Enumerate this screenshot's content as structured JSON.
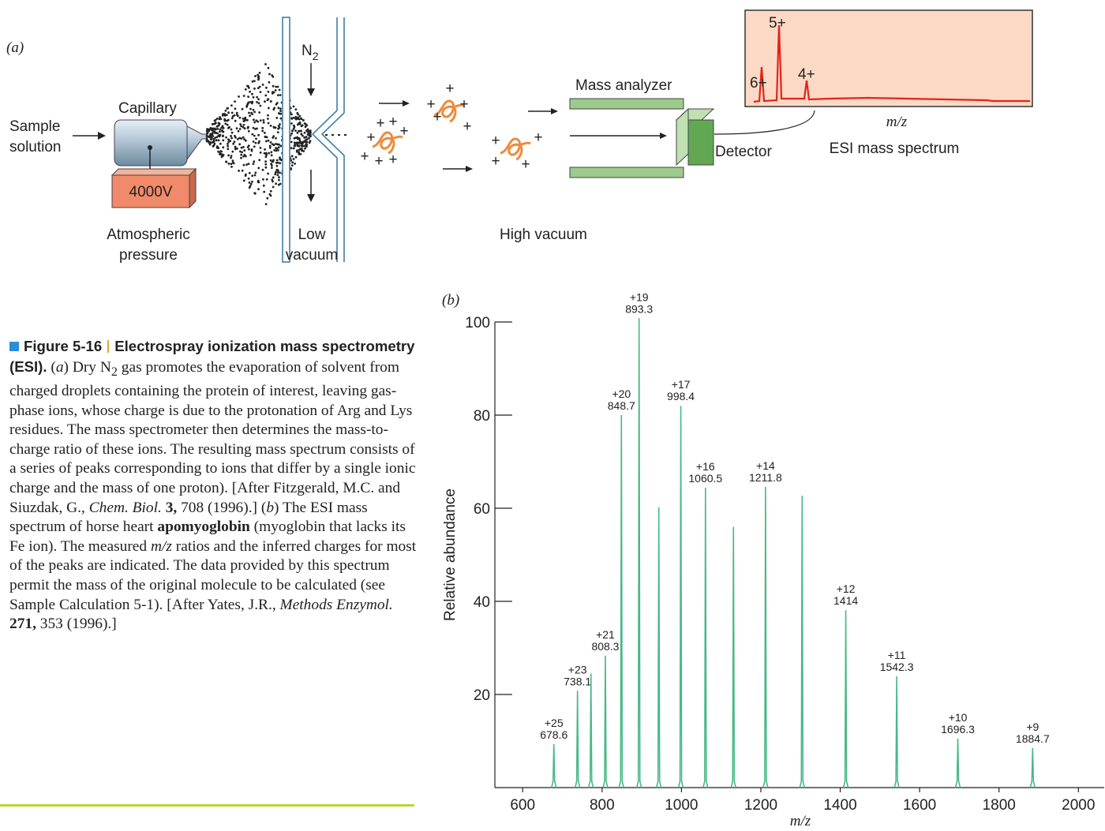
{
  "diagram": {
    "panel_label": "(a)",
    "sample_solution": [
      "Sample",
      "solution"
    ],
    "capillary": "Capillary",
    "voltage": "4000V",
    "atmospheric_pressure": [
      "Atmospheric",
      "pressure"
    ],
    "low_vacuum": [
      "Low",
      "vacuum"
    ],
    "gas": "N",
    "gas_subscript": "2",
    "high_vacuum": "High vacuum",
    "mass_analyzer": "Mass analyzer",
    "detector": "Detector",
    "spectrum_title": "ESI mass spectrum",
    "spectrum_peaks": [
      "6+",
      "5+",
      "4+"
    ],
    "spectrum_xlabel": "m/z",
    "charge_sign": "+"
  },
  "caption": {
    "runs": [
      "Figure 5-16",
      "Electrospray ionization mass spectrometry (ESI).",
      " (",
      "a",
      ") Dry N",
      "2",
      " gas promotes the evaporation of solvent from charged droplets containing the protein of interest, leaving gas-phase ions, whose charge is due to the protonation of Arg and Lys residues. The mass spectrometer then determines the mass-to-charge ratio of these ions. The resulting mass spectrum consists of a series of peaks corresponding to ions that differ by a single ionic charge and the mass of one proton). [After Fitzgerald, M.C. and Siuzdak, G., ",
      "Chem. Biol.",
      " ",
      "3,",
      " 708 (1996).] (",
      "b",
      ") The ESI mass spectrum of horse heart ",
      "apomyoglobin",
      " (myoglobin that lacks its Fe ion). The measured ",
      "m/z",
      " ratios and the inferred charges for most of the peaks are indicated. The data provided by this spectrum permit the mass of the original molecule to be calculated (see Sample Calculation 5-1). [After Yates, J.R., ",
      "Methods Enzymol.",
      " ",
      "271,",
      " 353 (1996).]"
    ]
  },
  "chart_data": {
    "type": "spectrum",
    "panel_label": "(b)",
    "xlabel": "m/z",
    "ylabel": "Relative abundance",
    "x": [
      678.6,
      738.1,
      772,
      808.3,
      848.7,
      893.3,
      943,
      998.4,
      1060.5,
      1131,
      1211.8,
      1304,
      1414.0,
      1542.3,
      1696.3,
      1884.7
    ],
    "values": [
      9.3,
      20.8,
      24.5,
      28.3,
      80,
      100.8,
      60.2,
      82,
      64.4,
      56,
      64.6,
      62.7,
      38.1,
      23.9,
      10.5,
      8.5
    ],
    "labels": [
      "+25",
      "+23",
      null,
      "+21",
      "+20",
      "+19",
      null,
      "+17",
      "+16",
      null,
      "+14",
      null,
      "+12",
      "+11",
      "+10",
      "+9"
    ],
    "color": "#49b887",
    "xlim": [
      530,
      2065
    ],
    "ylim": [
      0,
      100
    ],
    "xticks": [
      600,
      800,
      1000,
      1200,
      1400,
      1600,
      1800,
      2000
    ],
    "yticks": [
      20,
      40,
      60,
      80,
      100
    ]
  }
}
